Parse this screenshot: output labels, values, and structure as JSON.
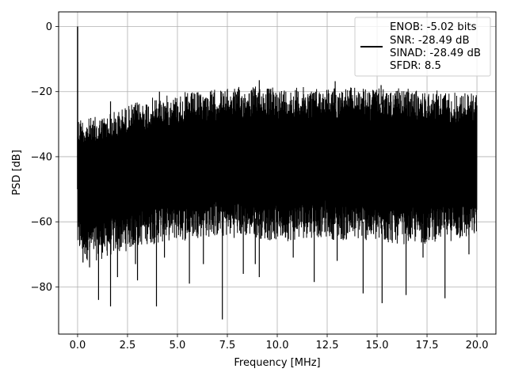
{
  "chart_data": {
    "type": "line",
    "title": "",
    "xlabel": "Frequency [MHz]",
    "ylabel": "PSD [dB]",
    "xlim": [
      -0.95,
      20.95
    ],
    "ylim": [
      -94.5,
      4.5
    ],
    "grid": true,
    "legend_position": "top-right",
    "xticks": [
      0,
      2.5,
      5,
      7.5,
      10,
      12.5,
      15,
      17.5,
      20
    ],
    "xtick_labels": [
      "0.0",
      "2.5",
      "5.0",
      "7.5",
      "10.0",
      "12.5",
      "15.0",
      "17.5",
      "20.0"
    ],
    "yticks": [
      0,
      -20,
      -40,
      -60,
      -80
    ],
    "ytick_labels": [
      "0",
      "−20",
      "−40",
      "−60",
      "−80"
    ],
    "legend": {
      "lines": [
        "ENOB: -5.02 bits",
        "SNR: -28.49 dB",
        "SINAD: -28.49 dB",
        "SFDR: 8.5"
      ]
    },
    "series": [
      {
        "color": "#000000",
        "envelope_x": [
          0,
          0.5,
          1,
          1.5,
          2,
          2.5,
          3,
          3.5,
          4,
          4.5,
          5,
          5.5,
          6,
          6.5,
          7,
          7.5,
          8,
          8.5,
          9,
          9.5,
          10,
          10.5,
          11,
          11.5,
          12,
          12.5,
          13,
          13.5,
          14,
          14.5,
          15,
          15.5,
          16,
          16.5,
          17,
          17.5,
          18,
          18.5,
          19,
          19.5,
          20
        ],
        "upper_y": [
          -27,
          -28,
          -27.5,
          -26.5,
          -25.5,
          -24,
          -23,
          -22,
          -21.5,
          -21,
          -20.5,
          -20,
          -20,
          -19.5,
          -19,
          -19,
          -18.5,
          -18.5,
          -18,
          -18.5,
          -18.5,
          -18.5,
          -18.5,
          -18.5,
          -18.5,
          -18.5,
          -18.5,
          -18.5,
          -18.5,
          -19,
          -19,
          -19,
          -19,
          -19,
          -19.5,
          -19.5,
          -19.5,
          -19.5,
          -20,
          -20,
          -20
        ],
        "lower_y": [
          -70,
          -72,
          -72,
          -71,
          -70,
          -69,
          -68,
          -67,
          -67,
          -66,
          -66,
          -66,
          -65,
          -65,
          -65,
          -65,
          -65,
          -65,
          -65,
          -66,
          -66,
          -66,
          -66,
          -65,
          -65,
          -65,
          -66,
          -66,
          -66,
          -66,
          -67,
          -67,
          -67,
          -67,
          -67,
          -67,
          -66,
          -66,
          -66,
          -66,
          -65
        ],
        "peak": {
          "x": 0,
          "y": 0
        },
        "dips": [
          {
            "x": 0.27,
            "y": -72.5
          },
          {
            "x": 0.6,
            "y": -74
          },
          {
            "x": 1.05,
            "y": -84
          },
          {
            "x": 1.65,
            "y": -86
          },
          {
            "x": 2.0,
            "y": -77
          },
          {
            "x": 3.0,
            "y": -78
          },
          {
            "x": 3.95,
            "y": -86
          },
          {
            "x": 5.6,
            "y": -79
          },
          {
            "x": 7.25,
            "y": -90
          },
          {
            "x": 8.3,
            "y": -76
          },
          {
            "x": 9.1,
            "y": -77
          },
          {
            "x": 11.85,
            "y": -78.5
          },
          {
            "x": 14.3,
            "y": -82
          },
          {
            "x": 15.25,
            "y": -85
          },
          {
            "x": 16.45,
            "y": -82.5
          },
          {
            "x": 18.4,
            "y": -83.5
          },
          {
            "x": 2.9,
            "y": -73
          },
          {
            "x": 4.35,
            "y": -71
          },
          {
            "x": 6.3,
            "y": -73
          },
          {
            "x": 8.9,
            "y": -73
          },
          {
            "x": 10.8,
            "y": -71
          },
          {
            "x": 13.0,
            "y": -72
          },
          {
            "x": 17.3,
            "y": -71
          },
          {
            "x": 19.6,
            "y": -70
          }
        ],
        "spikes_up": [
          {
            "x": 1.65,
            "y": -23
          },
          {
            "x": 4.1,
            "y": -20
          },
          {
            "x": 9.1,
            "y": -16.5
          },
          {
            "x": 12.9,
            "y": -16.8
          },
          {
            "x": 15.2,
            "y": -18
          }
        ]
      }
    ]
  }
}
